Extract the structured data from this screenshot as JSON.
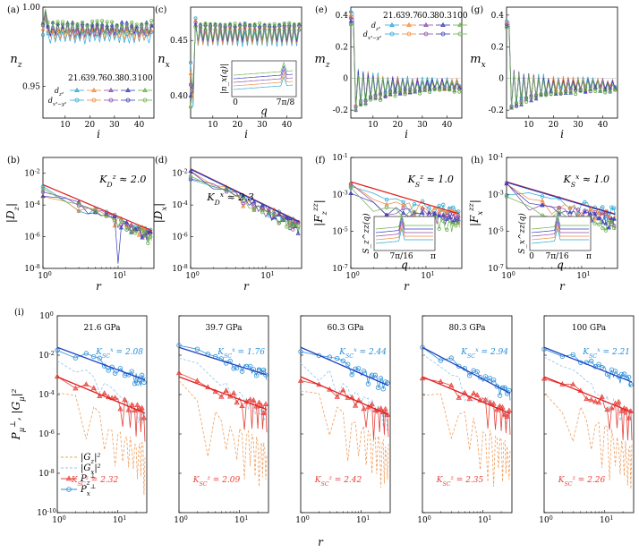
{
  "colors": {
    "p216": "#2aa8d8",
    "p397": "#f08a3a",
    "p603": "#8a4ca8",
    "p803": "#3b3bb8",
    "p100": "#6ab04c",
    "fit_red": "#e02020",
    "fit_blue": "#1f3fbf",
    "red_data": "#e8413a",
    "blue_data": "#2a8fd8",
    "gz_orange": "#f0a060",
    "gx_lightblue": "#8fc6ee"
  },
  "pressures": [
    "21.6",
    "39.7",
    "60.3",
    "80.3",
    "100"
  ],
  "chart_data": [
    {
      "id": "a",
      "label": "(a)",
      "type": "line",
      "ylabel": "n_z",
      "xlabel": "i",
      "xlim": [
        1,
        46
      ],
      "ylim": [
        0.93,
        1.0
      ],
      "xticks": [
        10,
        20,
        30,
        40
      ],
      "yticks": [
        0.95,
        1.0
      ],
      "ytick_labels": [
        "0.95",
        "1.00"
      ],
      "legend": {
        "title_row": [
          "21.6",
          "39.7",
          "60.3",
          "80.3",
          "100"
        ],
        "row1": "d_z²",
        "row2": "d_x²−y²"
      },
      "series_mean": [
        0.981,
        0.983,
        0.985,
        0.986,
        0.987
      ]
    },
    {
      "id": "c",
      "label": "(c)",
      "type": "line",
      "ylabel": "n_x",
      "xlabel": "i",
      "xlim": [
        1,
        46
      ],
      "ylim": [
        0.38,
        0.48
      ],
      "xticks": [
        10,
        20,
        30,
        40
      ],
      "yticks": [
        0.4,
        0.45
      ],
      "ytick_labels": [
        "0.40",
        "0.45"
      ],
      "inset": {
        "ylabel": "|n_x(q)|",
        "xlabel": "q",
        "xticks": [
          "0",
          "7π/8"
        ]
      },
      "series_mean": [
        0.452,
        0.454,
        0.456,
        0.457,
        0.458
      ]
    },
    {
      "id": "e",
      "label": "(e)",
      "type": "line",
      "ylabel": "m_z",
      "xlabel": "i",
      "xlim": [
        1,
        46
      ],
      "ylim": [
        -0.25,
        0.45
      ],
      "xticks": [
        10,
        20,
        30,
        40
      ],
      "yticks": [
        -0.2,
        0,
        0.2,
        0.4
      ],
      "ytick_labels": [
        "-0.2",
        "0",
        "0.2",
        "0.4"
      ],
      "legend": {
        "title_row": [
          "21.6",
          "39.7",
          "60.3",
          "80.3",
          "100"
        ],
        "row1": "d_z²",
        "row2": "d_x²−y²"
      }
    },
    {
      "id": "g",
      "label": "(g)",
      "type": "line",
      "ylabel": "m_x",
      "xlabel": "i",
      "xlim": [
        1,
        46
      ],
      "ylim": [
        -0.25,
        0.45
      ],
      "xticks": [
        10,
        20,
        30,
        40
      ],
      "yticks": [
        -0.2,
        0,
        0.2,
        0.4
      ],
      "ytick_labels": [
        "-0.2",
        "0",
        "0.2",
        "0.4"
      ]
    },
    {
      "id": "b",
      "label": "(b)",
      "type": "scatter-loglog",
      "ylabel": "|D_z|",
      "xlabel": "r",
      "xlim": [
        1,
        30
      ],
      "ylim_exp": [
        -8,
        -1
      ],
      "annotation": "K_D^z ≈ 2.0",
      "exponent": 2.0
    },
    {
      "id": "d",
      "label": "(d)",
      "type": "scatter-loglog",
      "ylabel": "|D_x|",
      "xlabel": "r",
      "xlim": [
        1,
        30
      ],
      "ylim_exp": [
        -8,
        -1
      ],
      "annotation": "K_D^x ≈ 2.3",
      "exponent": 2.3
    },
    {
      "id": "f",
      "label": "(f)",
      "type": "scatter-loglog",
      "ylabel": "|F_z^zz|",
      "xlabel": "r",
      "xlim": [
        1,
        30
      ],
      "ylim_exp": [
        -7,
        -1
      ],
      "annotation": "K_S^z ≈ 1.0",
      "exponent": 1.0,
      "inset": {
        "ylabel": "S_z^zz(q)",
        "xlabel": "q",
        "xticks": [
          "0",
          "7π/16",
          "π"
        ]
      }
    },
    {
      "id": "h",
      "label": "(h)",
      "type": "scatter-loglog",
      "ylabel": "|F_x^zz|",
      "xlabel": "r",
      "xlim": [
        1,
        30
      ],
      "ylim_exp": [
        -7,
        -1
      ],
      "annotation": "K_S^x ≈ 1.0",
      "exponent": 1.0,
      "inset": {
        "ylabel": "S_x^zz(q)",
        "xlabel": "q",
        "xticks": [
          "0",
          "7π/16",
          "π"
        ]
      }
    },
    {
      "id": "i",
      "label": "(i)",
      "type": "scatter-loglog-panels",
      "ylabel": "P_μ^⊥, |G_μ|²",
      "xlabel": "r",
      "xlim": [
        1,
        30
      ],
      "ylim_exp": [
        -10,
        0
      ],
      "legend": [
        "|G_z|²",
        "|G_x|²",
        "P_z^⊥",
        "P_x^⊥"
      ],
      "panels": [
        {
          "title": "21.6 GPa",
          "Ksc_x": "K_SC^x = 2.08",
          "Ksc_z": "K_SC^z = 2.32"
        },
        {
          "title": "39.7 GPa",
          "Ksc_x": "K_SC^x = 1.76",
          "Ksc_z": "K_SC^z = 2.09"
        },
        {
          "title": "60.3 GPa",
          "Ksc_x": "K_SC^x = 2.44",
          "Ksc_z": "K_SC^z = 2.42"
        },
        {
          "title": "80.3 GPa",
          "Ksc_x": "K_SC^x = 2.94",
          "Ksc_z": "K_SC^z = 2.35"
        },
        {
          "title": "100 GPa",
          "Ksc_x": "K_SC^x = 2.21",
          "Ksc_z": "K_SC^z = 2.26"
        }
      ]
    }
  ]
}
